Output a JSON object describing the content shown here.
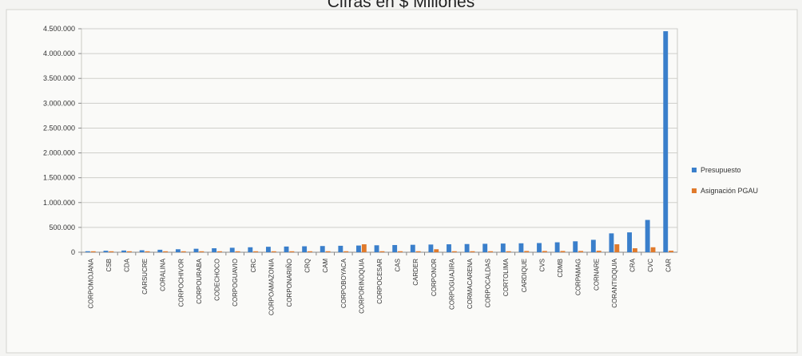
{
  "chart_data": {
    "type": "bar",
    "title": "Cifras en $ Millones",
    "xlabel": "",
    "ylabel": "",
    "ylim": [
      0,
      4500000
    ],
    "yticks": [
      "4.500.000",
      "4.000.000",
      "3.500.000",
      "3.000.000",
      "2.500.000",
      "2.000.000",
      "1.500.000",
      "1.000.000",
      "500.000",
      "0"
    ],
    "grid": true,
    "legend_position": "right",
    "categories": [
      "CORPOMOJANA",
      "CSB",
      "CDA",
      "CARSUCRE",
      "CORALINA",
      "CORPOCHIVOR",
      "CORPOURABA",
      "CODECHOCO",
      "CORPOGUAVIO",
      "CRC",
      "CORPOAMAZONIA",
      "CORPONARIÑO",
      "CRQ",
      "CAM",
      "CORPOBOYACA",
      "CORPORINOQUIA",
      "CORPOCESAR",
      "CAS",
      "CARDER",
      "CORPONOR",
      "CORPOGUAJIRA",
      "CORMACARENA",
      "CORPOCALDAS",
      "CORTOLIMA",
      "CARDIQUE",
      "CVS",
      "CDMB",
      "CORPAMAG",
      "CORNARE",
      "CORANTIOQUIA",
      "CRA",
      "CVC",
      "CAR"
    ],
    "series": [
      {
        "name": "Presupuesto",
        "color": "#3a7fcb",
        "values": [
          20000,
          30000,
          35000,
          40000,
          50000,
          60000,
          70000,
          80000,
          90000,
          100000,
          110000,
          115000,
          120000,
          125000,
          130000,
          135000,
          140000,
          145000,
          150000,
          155000,
          160000,
          165000,
          170000,
          175000,
          180000,
          185000,
          200000,
          220000,
          250000,
          380000,
          400000,
          650000,
          4450000
        ]
      },
      {
        "name": "Asignación PGAU",
        "color": "#e07a2c",
        "values": [
          5000,
          5000,
          5000,
          8000,
          8000,
          8000,
          10000,
          10000,
          10000,
          10000,
          15000,
          15000,
          15000,
          20000,
          20000,
          160000,
          20000,
          20000,
          20000,
          60000,
          20000,
          20000,
          20000,
          20000,
          25000,
          25000,
          25000,
          25000,
          30000,
          160000,
          80000,
          100000,
          30000
        ]
      }
    ]
  }
}
